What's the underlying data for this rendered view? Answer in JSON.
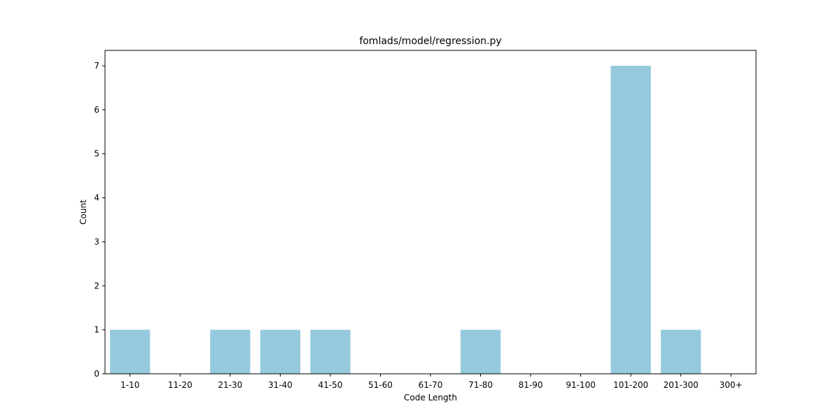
{
  "chart_data": {
    "type": "bar",
    "title": "fomlads/model/regression.py",
    "xlabel": "Code Length",
    "ylabel": "Count",
    "categories": [
      "1-10",
      "11-20",
      "21-30",
      "31-40",
      "41-50",
      "51-60",
      "61-70",
      "71-80",
      "81-90",
      "91-100",
      "101-200",
      "201-300",
      "300+"
    ],
    "values": [
      1,
      0,
      1,
      1,
      1,
      0,
      0,
      1,
      0,
      0,
      7,
      1,
      0
    ],
    "ylim": [
      0,
      7.35
    ],
    "yticks": [
      0,
      1,
      2,
      3,
      4,
      5,
      6,
      7
    ],
    "bar_color": "#95cade",
    "grid": false,
    "legend": "none"
  }
}
